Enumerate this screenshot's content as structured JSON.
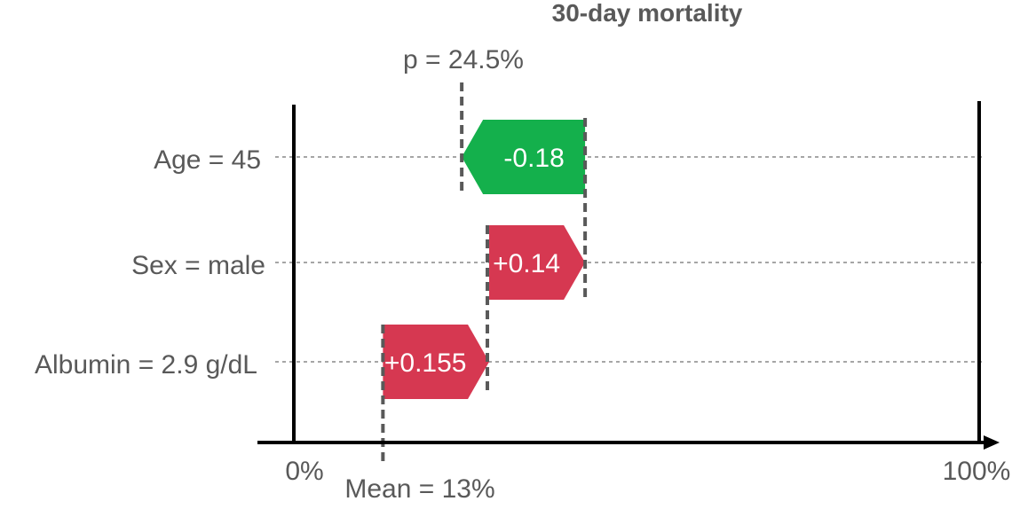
{
  "chart_data": {
    "type": "waterfall",
    "title": "30-day mortality",
    "xlim": [
      0,
      1
    ],
    "axis_labels": {
      "min": "0%",
      "max": "100%"
    },
    "baseline": {
      "value": 0.13,
      "label": "Mean = 13%"
    },
    "prediction": {
      "value": 0.245,
      "label": "p = 24.5%"
    },
    "features": [
      {
        "label": "Age = 45",
        "start": 0.425,
        "contribution": -0.18,
        "value_label": "-0.18"
      },
      {
        "label": "Sex = male",
        "start": 0.285,
        "contribution": 0.14,
        "value_label": "+0.14"
      },
      {
        "label": "Albumin = 2.9 g/dL",
        "start": 0.13,
        "contribution": 0.155,
        "value_label": "+0.155"
      }
    ],
    "colors": {
      "positive": "#d63851",
      "negative": "#14b04c",
      "axis": "#000000",
      "text": "#595959",
      "grid": "#a6a6a6",
      "connector": "#595959"
    }
  }
}
